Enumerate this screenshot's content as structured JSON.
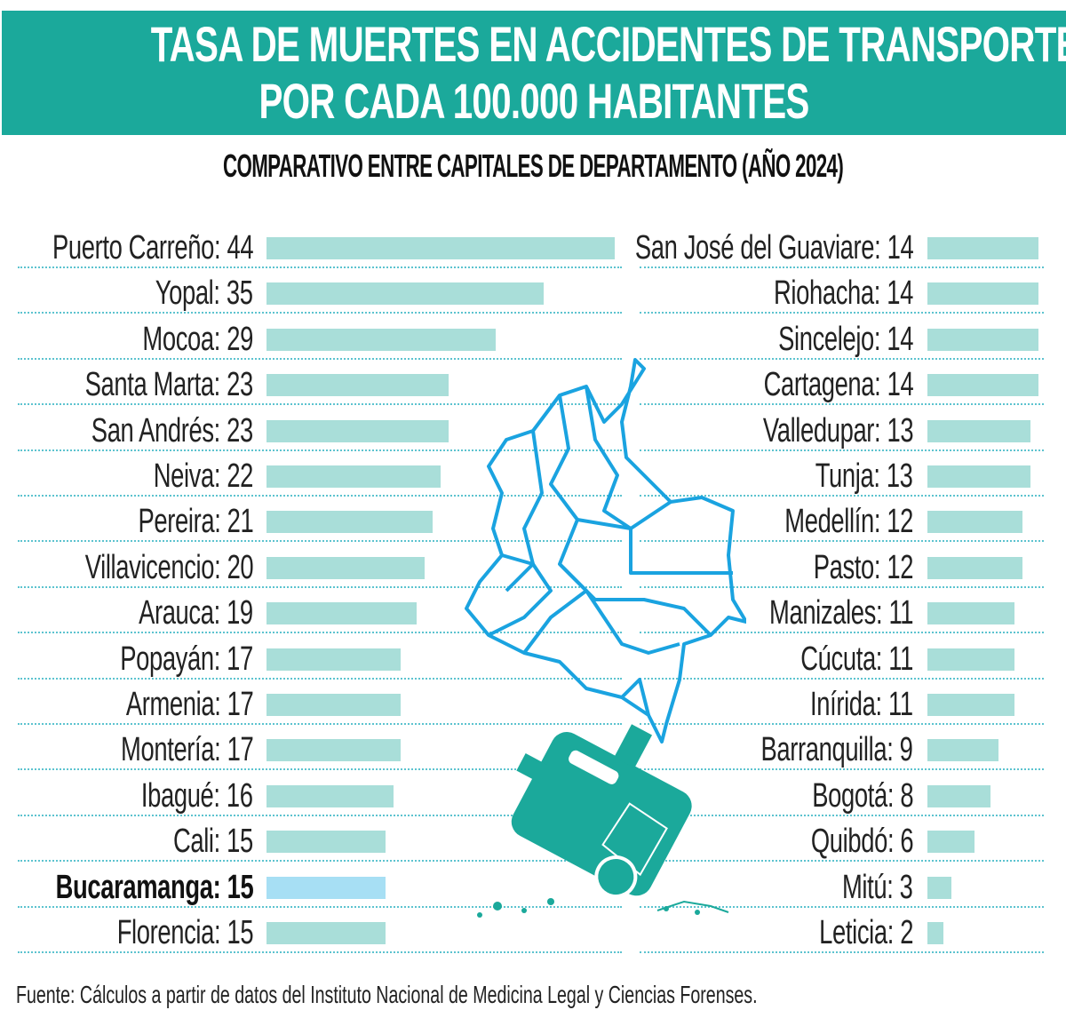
{
  "title_line1": "TASA DE MUERTES EN ACCIDENTES DE TRANSPORTE",
  "title_line2": "POR CADA 100.000 HABITANTES",
  "subtitle": "COMPARATIVO ENTRE CAPITALES DE DEPARTAMENTO (AÑO 2024)",
  "source": "Fuente: Cálculos a partir de datos del Instituto Nacional de Medicina Legal y Ciencias Forenses.",
  "colors": {
    "header": "#1ba99b",
    "bar": "#a9ded9",
    "highlight_bar": "#a7dff4",
    "map_stroke": "#1aa3e0",
    "car": "#1ba99b"
  },
  "icons": [
    "colombia-map-icon",
    "overturned-car-icon"
  ],
  "chart_data": [
    {
      "type": "bar",
      "orientation": "horizontal",
      "categories": [
        "Puerto Carreño",
        "Yopal",
        "Mocoa",
        "Santa Marta",
        "San Andrés",
        "Neiva",
        "Pereira",
        "Villavicencio",
        "Arauca",
        "Popayán",
        "Armenia",
        "Montería",
        "Ibagué",
        "Cali",
        "Bucaramanga",
        "Florencia"
      ],
      "values": [
        44,
        35,
        29,
        23,
        23,
        22,
        21,
        20,
        19,
        17,
        17,
        17,
        16,
        15,
        15,
        15
      ],
      "highlight": "Bucaramanga",
      "xlim": [
        0,
        44
      ],
      "grid": false
    },
    {
      "type": "bar",
      "orientation": "horizontal",
      "categories": [
        "San José del Guaviare",
        "Riohacha",
        "Sincelejo",
        "Cartagena",
        "Valledupar",
        "Tunja",
        "Medellín",
        "Pasto",
        "Manizales",
        "Cúcuta",
        "Inírida",
        "Barranquilla",
        "Bogotá",
        "Quibdó",
        "Mitú",
        "Leticia"
      ],
      "values": [
        14,
        14,
        14,
        14,
        13,
        13,
        12,
        12,
        11,
        11,
        11,
        9,
        8,
        6,
        3,
        2
      ],
      "xlim": [
        0,
        44
      ],
      "grid": false
    }
  ]
}
